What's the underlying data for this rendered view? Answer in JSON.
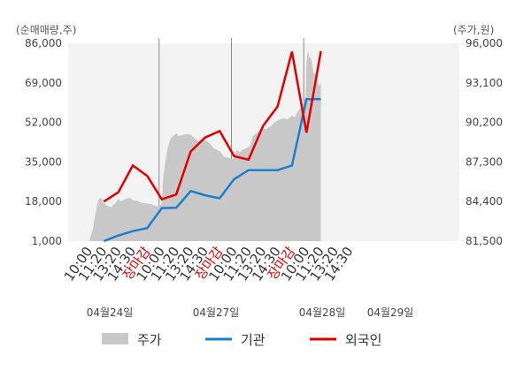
{
  "chart_data": {
    "type": "line",
    "left_axis": {
      "unit_label": "(순매매량,주)",
      "ticks": [
        "86,000",
        "69,000",
        "52,000",
        "35,000",
        "18,000",
        "1,000"
      ],
      "range": [
        1000,
        86000
      ]
    },
    "right_axis": {
      "unit_label": "(주가,원)",
      "ticks": [
        "96,000",
        "93,100",
        "90,200",
        "87,300",
        "84,400",
        "81,500"
      ],
      "range": [
        81500,
        96000
      ]
    },
    "x_labels": [
      {
        "text": "10:00",
        "closing": false
      },
      {
        "text": "11:20",
        "closing": false
      },
      {
        "text": "13:20",
        "closing": false
      },
      {
        "text": "14:30",
        "closing": false
      },
      {
        "text": "장마감",
        "closing": true
      },
      {
        "text": "10:00",
        "closing": false
      },
      {
        "text": "11:20",
        "closing": false
      },
      {
        "text": "13:20",
        "closing": false
      },
      {
        "text": "14:30",
        "closing": false
      },
      {
        "text": "장마감",
        "closing": true
      },
      {
        "text": "10:00",
        "closing": false
      },
      {
        "text": "11:20",
        "closing": false
      },
      {
        "text": "13:20",
        "closing": false
      },
      {
        "text": "14:30",
        "closing": false
      },
      {
        "text": "장마감",
        "closing": true
      },
      {
        "text": "10:00",
        "closing": false
      },
      {
        "text": "11:20",
        "closing": false
      },
      {
        "text": "13:20",
        "closing": false
      },
      {
        "text": "14:30",
        "closing": false
      }
    ],
    "day_labels": [
      "04월24일",
      "04월27일",
      "04월28일",
      "04월29일"
    ],
    "series": [
      {
        "name": "기관",
        "axis": "left",
        "color": "#1a7fd0",
        "points": [
          [
            1,
            1000
          ],
          [
            2,
            3400
          ],
          [
            3,
            5300
          ],
          [
            4,
            6600
          ],
          [
            5,
            15200
          ],
          [
            6,
            15300
          ],
          [
            7,
            22500
          ],
          [
            8,
            20700
          ],
          [
            9,
            19400
          ],
          [
            10,
            27600
          ],
          [
            11,
            31500
          ],
          [
            12,
            31500
          ],
          [
            13,
            31500
          ],
          [
            14,
            33500
          ],
          [
            15,
            62000
          ],
          [
            16,
            62000
          ]
        ]
      },
      {
        "name": "외국인",
        "axis": "left",
        "color": "#e00000",
        "points": [
          [
            1,
            18000
          ],
          [
            2,
            22000
          ],
          [
            3,
            33500
          ],
          [
            4,
            29000
          ],
          [
            5,
            19000
          ],
          [
            6,
            21000
          ],
          [
            7,
            39500
          ],
          [
            8,
            45500
          ],
          [
            9,
            48300
          ],
          [
            10,
            37500
          ],
          [
            11,
            36000
          ],
          [
            12,
            50500
          ],
          [
            13,
            58800
          ],
          [
            14,
            82400
          ],
          [
            15,
            47600
          ],
          [
            16,
            82600
          ]
        ]
      }
    ],
    "price": {
      "name": "주가",
      "axis": "right",
      "color": "#c8c8c8",
      "points": [
        [
          0,
          81500
        ],
        [
          0.1,
          81900
        ],
        [
          0.25,
          82400
        ],
        [
          0.4,
          83400
        ],
        [
          0.6,
          84500
        ],
        [
          0.8,
          84700
        ],
        [
          1.0,
          84300
        ],
        [
          1.2,
          84100
        ],
        [
          1.5,
          84000
        ],
        [
          1.8,
          84300
        ],
        [
          2.0,
          84600
        ],
        [
          2.2,
          84400
        ],
        [
          2.5,
          84600
        ],
        [
          2.8,
          84700
        ],
        [
          3.0,
          84500
        ],
        [
          3.3,
          84450
        ],
        [
          3.6,
          84300
        ],
        [
          4.0,
          84250
        ],
        [
          4.3,
          84200
        ],
        [
          4.6,
          84050
        ],
        [
          4.9,
          84100
        ],
        [
          5.0,
          84300
        ],
        [
          5.1,
          86200
        ],
        [
          5.25,
          87300
        ],
        [
          5.4,
          88300
        ],
        [
          5.6,
          89000
        ],
        [
          5.8,
          89200
        ],
        [
          6.0,
          89400
        ],
        [
          6.2,
          89200
        ],
        [
          6.5,
          89300
        ],
        [
          6.8,
          89350
        ],
        [
          7.0,
          89300
        ],
        [
          7.3,
          89000
        ],
        [
          7.6,
          88800
        ],
        [
          8.0,
          88900
        ],
        [
          8.3,
          88700
        ],
        [
          8.6,
          88300
        ],
        [
          9.0,
          88100
        ],
        [
          9.3,
          87700
        ],
        [
          9.6,
          87600
        ],
        [
          9.9,
          87500
        ],
        [
          10.0,
          87700
        ],
        [
          10.2,
          88200
        ],
        [
          10.4,
          88000
        ],
        [
          10.6,
          88200
        ],
        [
          10.9,
          88350
        ],
        [
          11.1,
          88500
        ],
        [
          11.3,
          89200
        ],
        [
          11.6,
          89450
        ],
        [
          11.9,
          89800
        ],
        [
          12.2,
          89700
        ],
        [
          12.5,
          89900
        ],
        [
          12.8,
          90200
        ],
        [
          13.1,
          90400
        ],
        [
          13.4,
          90500
        ],
        [
          13.7,
          90450
        ],
        [
          14.0,
          90700
        ],
        [
          14.2,
          90600
        ],
        [
          14.4,
          91000
        ],
        [
          14.6,
          91300
        ],
        [
          14.8,
          91700
        ],
        [
          14.95,
          92100
        ],
        [
          15.0,
          94500
        ],
        [
          15.1,
          95500
        ],
        [
          15.2,
          95000
        ],
        [
          15.35,
          94800
        ],
        [
          15.5,
          93800
        ],
        [
          15.7,
          93700
        ],
        [
          15.85,
          92900
        ],
        [
          16.0,
          93000
        ]
      ]
    },
    "legend": {
      "placement": "bottom",
      "items": [
        {
          "name": "주가",
          "kind": "area",
          "color": "#c8c8c8"
        },
        {
          "name": "기관",
          "kind": "line",
          "color": "#1a7fd0"
        },
        {
          "name": "외국인",
          "kind": "line",
          "color": "#e00000"
        }
      ]
    },
    "grid": "vertical day separators"
  }
}
